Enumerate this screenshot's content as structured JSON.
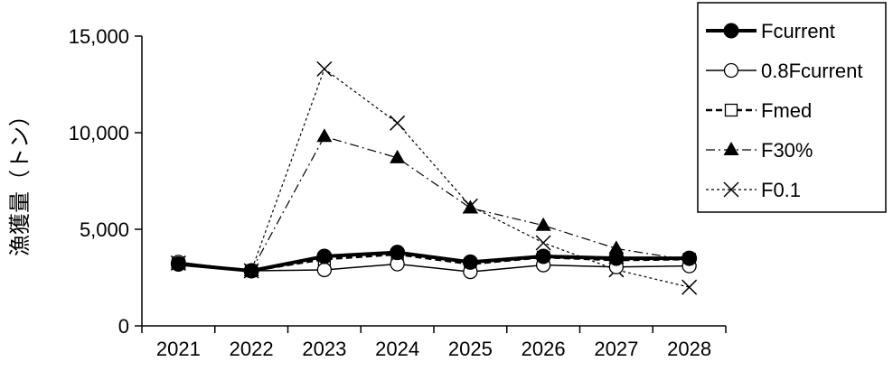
{
  "chart_data": {
    "type": "line",
    "categories": [
      "2021",
      "2022",
      "2023",
      "2024",
      "2025",
      "2026",
      "2027",
      "2028"
    ],
    "ylabel": "漁獲量（トン）",
    "xlabel": "",
    "ylim": [
      0,
      15000
    ],
    "yticks": [
      0,
      5000,
      10000,
      15000
    ],
    "ytick_labels": [
      "0",
      "5,000",
      "10,000",
      "15,000"
    ],
    "grid": false,
    "legend_position": "top-right",
    "series": [
      {
        "name": "Fcurrent",
        "values": [
          3200,
          2850,
          3600,
          3800,
          3300,
          3600,
          3500,
          3500
        ],
        "line": "solid-thick",
        "marker": "filled-circle",
        "color": "#000000"
      },
      {
        "name": "0.8Fcurrent",
        "values": [
          3300,
          2850,
          2900,
          3200,
          2800,
          3150,
          3050,
          3100
        ],
        "line": "solid",
        "marker": "open-circle",
        "color": "#000000"
      },
      {
        "name": "Fmed",
        "values": [
          3250,
          2850,
          3450,
          3700,
          3200,
          3550,
          3400,
          3450
        ],
        "line": "dashed",
        "marker": "open-square",
        "color": "#000000"
      },
      {
        "name": "F30%",
        "values": [
          3250,
          2850,
          9800,
          8700,
          6100,
          5200,
          4000,
          3400
        ],
        "line": "dash-dot",
        "marker": "filled-triangle",
        "color": "#000000"
      },
      {
        "name": "F0.1",
        "values": [
          3250,
          2850,
          13300,
          10500,
          6200,
          4300,
          2900,
          2000
        ],
        "line": "dotted",
        "marker": "cross",
        "color": "#000000"
      }
    ]
  }
}
